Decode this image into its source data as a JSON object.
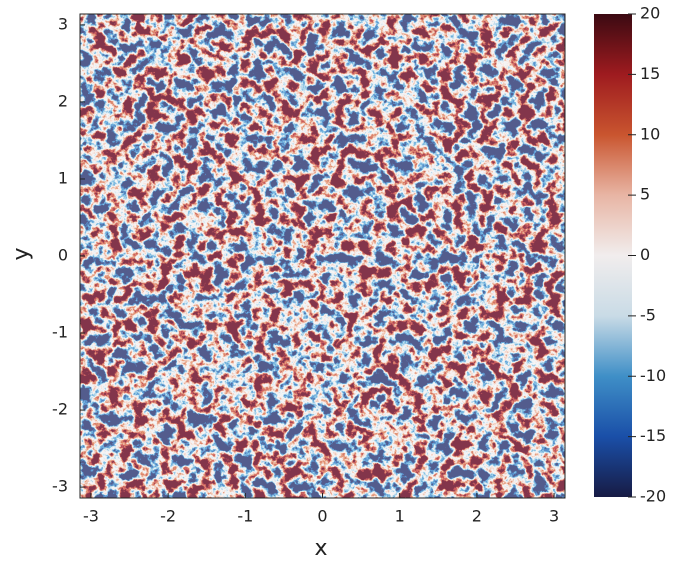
{
  "chart_data": {
    "type": "heatmap",
    "x_label": "x",
    "y_label": "y",
    "xlim": [
      -3.14159,
      3.14159
    ],
    "ylim": [
      -3.14159,
      3.14159
    ],
    "xticks": [
      -3,
      -2,
      -1,
      0,
      1,
      2,
      3
    ],
    "yticks": [
      -3,
      -2,
      -1,
      0,
      1,
      2,
      3
    ],
    "colorbar": {
      "lim": [
        -20,
        20
      ],
      "ticks": [
        -20,
        -15,
        -10,
        -5,
        0,
        5,
        10,
        15,
        20
      ],
      "colors": [
        "#171b44",
        "#1a4fa8",
        "#3f8fc7",
        "#c9dbe6",
        "#f1eded",
        "#e8b5a4",
        "#c9552f",
        "#9e1b1f",
        "#3b0a12"
      ]
    }
  }
}
